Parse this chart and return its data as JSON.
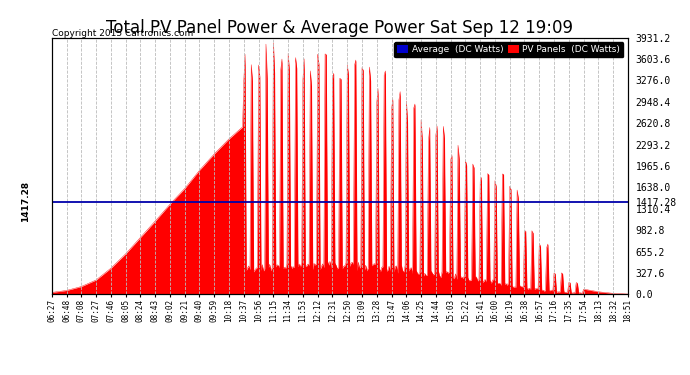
{
  "title": "Total PV Panel Power & Average Power Sat Sep 12 19:09",
  "copyright": "Copyright 2015 Cartronics.com",
  "average_value": 1417.28,
  "y_max": 3931.2,
  "y_min": 0.0,
  "yticks_right": [
    0.0,
    327.6,
    655.2,
    982.8,
    1310.4,
    1638.0,
    1965.6,
    2293.2,
    2620.8,
    2948.4,
    3276.0,
    3603.6,
    3931.2
  ],
  "avg_ytick": 1417.28,
  "background_color": "#ffffff",
  "fill_color": "#ff0000",
  "avg_line_color": "#0000aa",
  "grid_color": "#bbbbbb",
  "title_fontsize": 12,
  "legend_labels": [
    "Average  (DC Watts)",
    "PV Panels  (DC Watts)"
  ],
  "legend_colors": [
    "#0000cc",
    "#ff0000"
  ],
  "x_labels": [
    "06:27",
    "06:48",
    "07:08",
    "07:27",
    "07:46",
    "08:05",
    "08:24",
    "08:43",
    "09:02",
    "09:21",
    "09:40",
    "09:59",
    "10:18",
    "10:37",
    "10:56",
    "11:15",
    "11:34",
    "11:53",
    "12:12",
    "12:31",
    "12:50",
    "13:09",
    "13:28",
    "13:47",
    "14:06",
    "14:25",
    "14:44",
    "15:03",
    "15:22",
    "15:41",
    "16:00",
    "16:19",
    "16:38",
    "16:57",
    "17:16",
    "17:35",
    "17:54",
    "18:13",
    "18:32",
    "18:51"
  ],
  "base_envelope": [
    30,
    60,
    120,
    220,
    400,
    620,
    870,
    1120,
    1380,
    1620,
    1900,
    2150,
    2380,
    2580,
    2750,
    2880,
    2980,
    3060,
    3120,
    3060,
    3000,
    2920,
    2820,
    2680,
    2520,
    2340,
    2140,
    1900,
    1640,
    1380,
    1100,
    840,
    600,
    400,
    250,
    150,
    80,
    40,
    15,
    5
  ],
  "spike_dip_indices": [
    14,
    15,
    16,
    17,
    18,
    19,
    20,
    21,
    22,
    23,
    24,
    25,
    26,
    27,
    28,
    29,
    30,
    31,
    32,
    33,
    34,
    35,
    36
  ],
  "spike_peaks": [
    3800,
    3870,
    3900,
    3820,
    3750,
    3700,
    3680,
    3620,
    3580,
    3450,
    3200,
    3000,
    2750,
    2600,
    2400,
    2200,
    1950,
    1850,
    1700,
    1000,
    800,
    350,
    200
  ]
}
